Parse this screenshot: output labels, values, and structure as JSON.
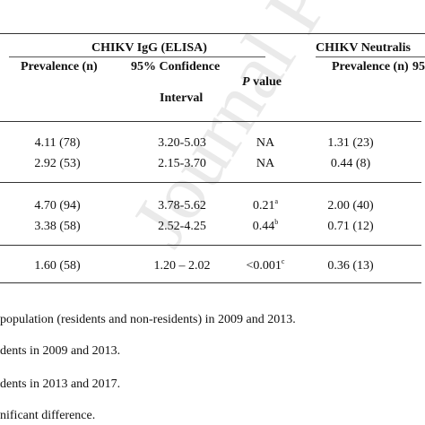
{
  "table": {
    "group_headers": {
      "igg": "CHIKV IgG (ELISA)",
      "neut": "CHIKV Neutralis"
    },
    "subheaders": {
      "prevalence": "Prevalence (n)",
      "ci_line1": "95% Confidence",
      "ci_line2": "Interval",
      "p_italic": "P",
      "p_rest": " value",
      "neut_prevalence": "Prevalence (n)",
      "neut_ci_partial": "95"
    },
    "rows": [
      {
        "igg_prev": "4.11 (78)",
        "igg_ci": "3.20-5.03",
        "p": "NA",
        "p_sup": "",
        "neut_prev": "1.31 (23)"
      },
      {
        "igg_prev": "2.92 (53)",
        "igg_ci": "2.15-3.70",
        "p": "NA",
        "p_sup": "",
        "neut_prev": "0.44 (8)"
      },
      {
        "igg_prev": "4.70 (94)",
        "igg_ci": "3.78-5.62",
        "p": "0.21",
        "p_sup": "a",
        "neut_prev": "2.00 (40)"
      },
      {
        "igg_prev": "3.38 (58)",
        "igg_ci": "2.52-4.25",
        "p": "0.44",
        "p_sup": "b",
        "neut_prev": "0.71 (12)"
      },
      {
        "igg_prev": "1.60 (58)",
        "igg_ci": "1.20 – 2.02",
        "p": "<0.001",
        "p_sup": "c",
        "neut_prev": "0.36 (13)"
      }
    ]
  },
  "footnotes": [
    "population (residents and non-residents) in 2009 and 2013.",
    "dents in 2009 and 2013.",
    "dents in 2013 and 2017.",
    "nificant difference."
  ],
  "watermark": "Journal Pre-proof"
}
